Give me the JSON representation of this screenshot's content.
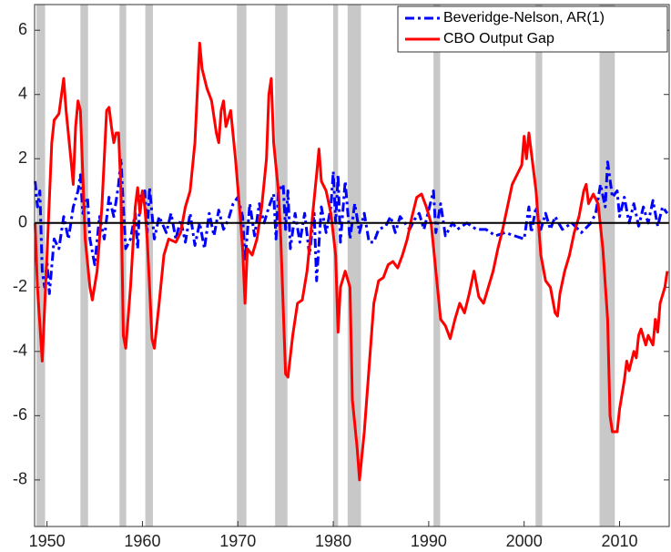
{
  "chart_data": {
    "type": "line",
    "xlim": [
      1948.7,
      2015.2
    ],
    "ylim": [
      -9.45,
      6.8
    ],
    "xticks": [
      1950,
      1960,
      1970,
      1980,
      1990,
      2000,
      2010
    ],
    "yticks": [
      -8,
      -6,
      -4,
      -2,
      0,
      2,
      4,
      6
    ],
    "hline": 0,
    "legend": "upper right",
    "recessions": [
      [
        1948.9,
        1949.8
      ],
      [
        1953.5,
        1954.3
      ],
      [
        1957.6,
        1958.3
      ],
      [
        1960.3,
        1961.1
      ],
      [
        1969.9,
        1970.9
      ],
      [
        1973.9,
        1975.2
      ],
      [
        1980.0,
        1980.5
      ],
      [
        1981.5,
        1982.9
      ],
      [
        1990.5,
        1991.2
      ],
      [
        2001.2,
        2001.9
      ],
      [
        2007.9,
        2009.5
      ]
    ],
    "series": [
      {
        "name": "Beveridge-Nelson, AR(1)",
        "color": "#0000ff",
        "dashed": true,
        "x": [
          1948.75,
          1949.0,
          1949.25,
          1949.5,
          1949.75,
          1950.0,
          1950.25,
          1950.75,
          1951.25,
          1951.75,
          1952.25,
          1952.75,
          1953.25,
          1953.5,
          1953.75,
          1954.25,
          1954.5,
          1955.0,
          1955.5,
          1956.0,
          1956.5,
          1957.0,
          1957.5,
          1957.75,
          1958.0,
          1958.25,
          1958.75,
          1959.25,
          1959.5,
          1959.75,
          1960.25,
          1960.5,
          1960.75,
          1961.25,
          1961.75,
          1962.5,
          1963.0,
          1963.5,
          1964.0,
          1964.5,
          1965.0,
          1965.5,
          1966.0,
          1966.5,
          1967.0,
          1967.5,
          1968.0,
          1968.5,
          1969.0,
          1969.5,
          1970.0,
          1970.5,
          1970.75,
          1971.25,
          1971.75,
          1972.25,
          1972.75,
          1973.25,
          1973.75,
          1974.0,
          1974.25,
          1974.75,
          1975.0,
          1975.25,
          1975.5,
          1976.0,
          1976.5,
          1977.0,
          1977.5,
          1978.0,
          1978.25,
          1978.75,
          1979.25,
          1979.75,
          1980.0,
          1980.25,
          1980.5,
          1980.75,
          1981.25,
          1981.75,
          1982.25,
          1982.75,
          1983.25,
          1983.75,
          1984.25,
          1984.75,
          1985.5,
          1986.0,
          1986.5,
          1987.0,
          1987.5,
          1988.0,
          1988.5,
          1989.0,
          1989.5,
          1990.0,
          1990.5,
          1990.75,
          1991.25,
          1991.75,
          1992.5,
          1993.0,
          1994.0,
          1995.0,
          1996.0,
          1997.0,
          1998.0,
          1999.0,
          2000.0,
          2000.5,
          2000.75,
          2001.25,
          2001.75,
          2002.25,
          2002.75,
          2003.25,
          2004.0,
          2005.0,
          2006.0,
          2007.0,
          2007.5,
          2008.0,
          2008.5,
          2008.75,
          2009.25,
          2009.75,
          2010.0,
          2010.5,
          2011.0,
          2011.5,
          2012.0,
          2012.5,
          2013.0,
          2013.5,
          2014.0,
          2014.5,
          2015.0
        ],
        "values": [
          1.3,
          0.5,
          1.0,
          -1.5,
          -2.0,
          -1.2,
          -2.2,
          -0.5,
          -0.8,
          0.2,
          -0.5,
          0.5,
          1.0,
          1.5,
          0.3,
          0.8,
          -0.5,
          -1.3,
          0.2,
          -0.5,
          0.8,
          0.2,
          1.2,
          2.0,
          0.5,
          -0.8,
          -0.5,
          0.3,
          -0.8,
          0.8,
          1.0,
          -0.3,
          1.1,
          -0.5,
          0.2,
          -0.3,
          0.3,
          -0.5,
          0.1,
          -0.6,
          0.3,
          -0.7,
          0.0,
          -0.8,
          0.3,
          -0.4,
          0.4,
          -0.2,
          0.1,
          0.6,
          0.8,
          0.2,
          -1.2,
          0.6,
          -0.4,
          0.6,
          0.0,
          0.5,
          0.9,
          -0.5,
          1.0,
          1.2,
          -0.2,
          1.0,
          -0.8,
          0.3,
          -0.6,
          0.3,
          -1.0,
          0.3,
          -1.8,
          0.5,
          -0.3,
          0.5,
          1.6,
          0.0,
          1.5,
          -0.6,
          1.3,
          -0.5,
          0.6,
          -0.3,
          0.3,
          -0.6,
          -0.6,
          -0.2,
          -0.1,
          0.2,
          -0.3,
          0.2,
          0.0,
          -0.2,
          0.1,
          0.3,
          -0.2,
          0.4,
          1.0,
          -0.3,
          0.6,
          -0.4,
          0.0,
          -0.2,
          0.0,
          -0.2,
          -0.2,
          -0.4,
          -0.3,
          -0.4,
          -0.5,
          0.5,
          -0.3,
          0.5,
          -0.2,
          0.3,
          -0.2,
          0.2,
          -0.2,
          0.0,
          -0.3,
          0.0,
          0.3,
          1.2,
          0.5,
          1.9,
          0.8,
          1.0,
          0.2,
          0.8,
          0.0,
          0.6,
          -0.1,
          0.5,
          0.0,
          0.7,
          -0.1,
          0.5,
          0.3
        ]
      },
      {
        "name": "CBO Output Gap",
        "color": "#ff0000",
        "dashed": false,
        "x": [
          1948.75,
          1949.0,
          1949.5,
          1950.0,
          1950.5,
          1950.75,
          1951.25,
          1951.75,
          1952.0,
          1952.5,
          1952.75,
          1953.0,
          1953.25,
          1953.5,
          1953.75,
          1954.0,
          1954.5,
          1954.75,
          1955.25,
          1955.75,
          1956.0,
          1956.25,
          1956.5,
          1956.75,
          1957.0,
          1957.25,
          1957.5,
          1957.75,
          1958.0,
          1958.25,
          1958.75,
          1959.25,
          1959.5,
          1959.75,
          1960.0,
          1960.25,
          1960.5,
          1960.75,
          1961.0,
          1961.25,
          1961.75,
          1962.25,
          1962.75,
          1963.5,
          1964.0,
          1964.5,
          1965.0,
          1965.5,
          1966.0,
          1966.25,
          1966.75,
          1967.25,
          1967.75,
          1968.0,
          1968.25,
          1968.5,
          1968.75,
          1969.25,
          1969.75,
          1970.25,
          1970.5,
          1970.75,
          1971.0,
          1971.5,
          1972.0,
          1972.5,
          1973.0,
          1973.25,
          1973.5,
          1973.75,
          1974.25,
          1974.5,
          1975.0,
          1975.25,
          1975.75,
          1976.25,
          1976.75,
          1977.25,
          1977.75,
          1978.25,
          1978.5,
          1978.75,
          1979.25,
          1979.75,
          1980.25,
          1980.5,
          1980.75,
          1981.25,
          1981.75,
          1982.0,
          1982.5,
          1982.75,
          1983.25,
          1983.75,
          1984.25,
          1984.75,
          1985.25,
          1985.75,
          1986.25,
          1986.75,
          1987.25,
          1987.75,
          1988.25,
          1988.75,
          1989.25,
          1989.75,
          1990.25,
          1990.75,
          1991.25,
          1991.75,
          1992.25,
          1992.75,
          1993.25,
          1993.75,
          1994.25,
          1994.75,
          1995.25,
          1995.75,
          1996.25,
          1996.75,
          1997.25,
          1997.75,
          1998.25,
          1998.75,
          1999.25,
          1999.75,
          2000.0,
          2000.25,
          2000.5,
          2000.75,
          2001.25,
          2001.75,
          2002.25,
          2002.75,
          2003.25,
          2003.5,
          2003.75,
          2004.25,
          2004.75,
          2005.25,
          2005.75,
          2006.25,
          2006.5,
          2006.75,
          2007.25,
          2007.75,
          2008.25,
          2008.75,
          2009.0,
          2009.25,
          2009.75,
          2010.0,
          2010.5,
          2010.75,
          2011.0,
          2011.5,
          2011.75,
          2012.0,
          2012.25,
          2012.75,
          2013.0,
          2013.5,
          2013.75,
          2014.0,
          2014.25,
          2014.75,
          2015.0
        ],
        "values": [
          0.0,
          -2.0,
          -4.3,
          -1.0,
          2.5,
          3.2,
          3.4,
          4.5,
          3.5,
          2.0,
          1.2,
          3.0,
          3.8,
          3.5,
          1.5,
          -0.5,
          -2.0,
          -2.4,
          -1.5,
          0.5,
          2.0,
          3.5,
          3.6,
          3.0,
          2.5,
          2.8,
          2.8,
          1.0,
          -3.5,
          -3.9,
          -2.0,
          0.5,
          1.1,
          0.3,
          1.0,
          0.5,
          -0.5,
          -2.0,
          -3.6,
          -3.9,
          -2.5,
          -1.0,
          -0.5,
          -0.6,
          -0.3,
          0.5,
          1.0,
          2.5,
          5.6,
          4.8,
          4.2,
          3.8,
          2.8,
          2.5,
          3.5,
          3.8,
          3.0,
          3.5,
          2.0,
          0.2,
          -0.8,
          -2.5,
          -0.8,
          -1.0,
          -0.5,
          0.5,
          2.0,
          4.0,
          4.5,
          2.5,
          1.0,
          -0.5,
          -4.7,
          -4.8,
          -3.5,
          -2.5,
          -2.4,
          -1.5,
          0.0,
          1.5,
          2.3,
          1.3,
          1.0,
          0.3,
          -1.0,
          -3.4,
          -2.0,
          -1.5,
          -2.0,
          -5.5,
          -7.0,
          -8.0,
          -6.5,
          -4.5,
          -2.5,
          -1.8,
          -1.7,
          -1.3,
          -1.2,
          -1.4,
          -1.0,
          -0.5,
          0.2,
          0.8,
          0.9,
          0.5,
          0.0,
          -1.5,
          -3.0,
          -3.2,
          -3.6,
          -3.0,
          -2.5,
          -2.8,
          -2.2,
          -1.5,
          -2.3,
          -2.5,
          -2.0,
          -1.5,
          -0.8,
          -0.2,
          0.5,
          1.2,
          1.5,
          1.8,
          2.7,
          2.0,
          2.8,
          2.2,
          1.0,
          -1.0,
          -1.8,
          -2.0,
          -2.8,
          -2.9,
          -2.2,
          -1.5,
          -1.0,
          -0.3,
          0.2,
          1.0,
          1.2,
          0.6,
          0.9,
          0.6,
          -0.8,
          -3.0,
          -6.0,
          -6.5,
          -6.5,
          -5.8,
          -4.9,
          -4.3,
          -4.6,
          -4.0,
          -4.2,
          -3.5,
          -3.3,
          -3.8,
          -3.5,
          -3.8,
          -3.0,
          -3.4,
          -2.5,
          -2.0,
          -1.5
        ]
      }
    ]
  }
}
